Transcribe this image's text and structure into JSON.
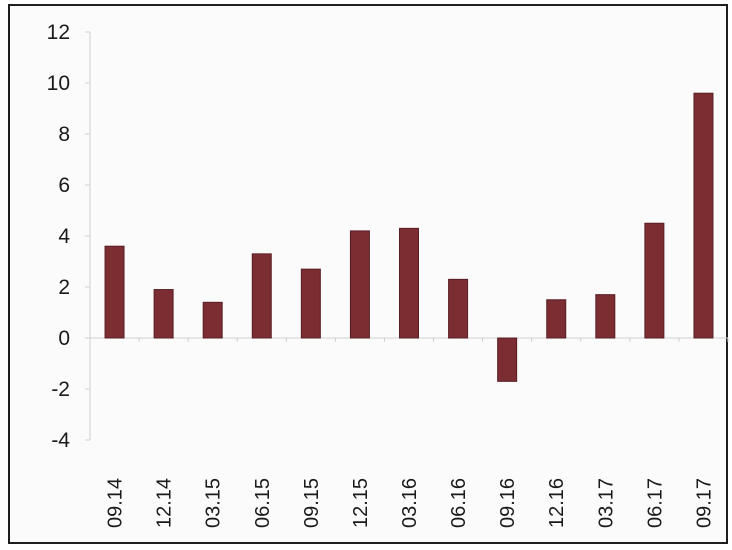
{
  "chart_data": {
    "type": "bar",
    "title": "",
    "xlabel": "",
    "ylabel": "",
    "categories": [
      "09.14",
      "12.14",
      "03.15",
      "06.15",
      "09.15",
      "12.15",
      "03.16",
      "06.16",
      "09.16",
      "12.16",
      "03.17",
      "06.17",
      "09.17"
    ],
    "values": [
      3.6,
      1.9,
      1.4,
      3.3,
      2.7,
      4.2,
      4.3,
      2.3,
      -1.7,
      1.5,
      1.7,
      4.5,
      9.6
    ],
    "ylim": [
      -4,
      12
    ],
    "yticks": [
      -4,
      -2,
      0,
      2,
      4,
      6,
      8,
      10,
      12
    ],
    "grid": false,
    "legend": "none",
    "bar_color": "#7b2d32",
    "bar_edge_color": "#5a1f24"
  }
}
